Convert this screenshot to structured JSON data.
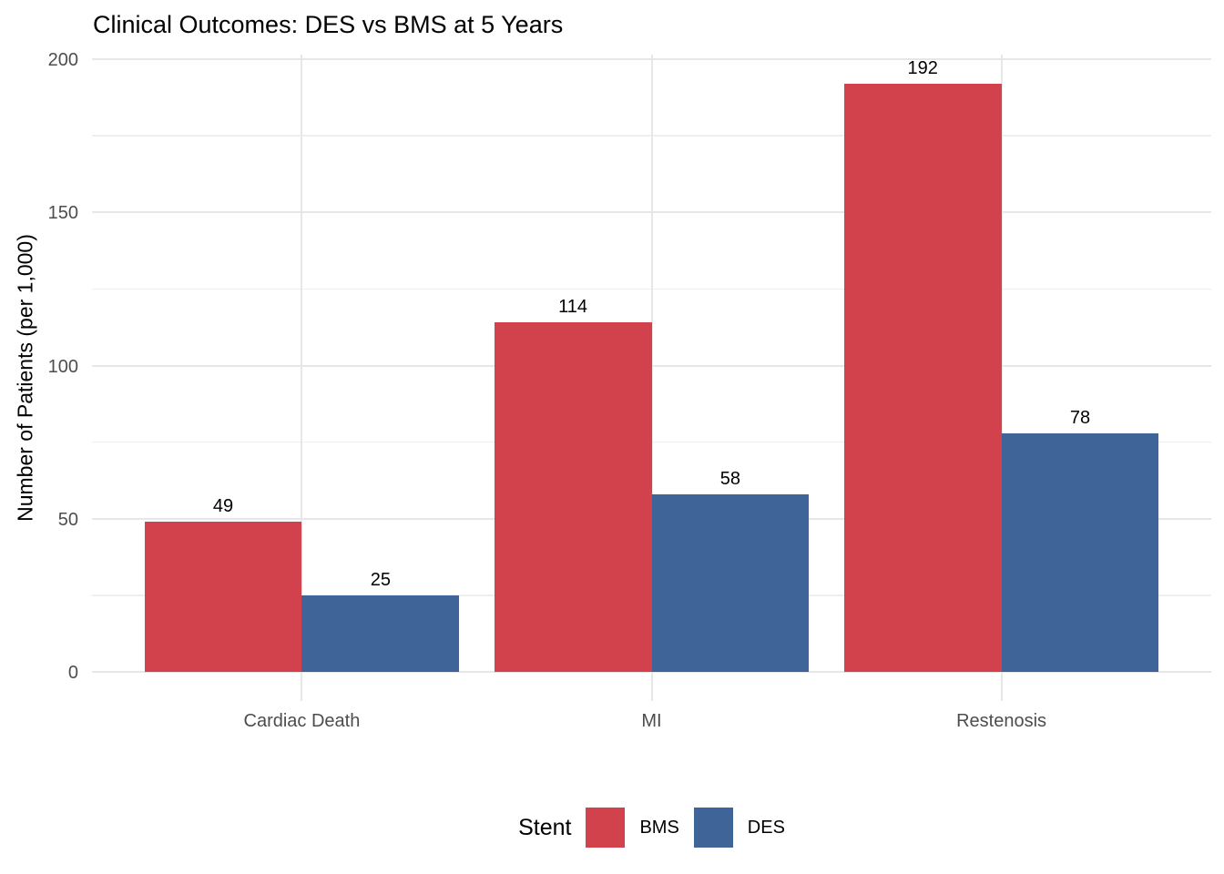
{
  "title": "Clinical Outcomes: DES vs BMS at 5 Years",
  "chart_data": {
    "type": "bar",
    "title": "Clinical Outcomes: DES vs BMS at 5 Years",
    "xlabel": "",
    "ylabel": "Number of Patients (per 1,000)",
    "categories": [
      "Cardiac Death",
      "MI",
      "Restenosis"
    ],
    "series": [
      {
        "name": "BMS",
        "color": "#D2424C",
        "values": [
          49,
          114,
          192
        ]
      },
      {
        "name": "DES",
        "color": "#3F6497",
        "values": [
          25,
          58,
          78
        ]
      }
    ],
    "ylim": [
      0,
      200
    ],
    "yticks": [
      0,
      50,
      100,
      150,
      200
    ],
    "yminor_ticks": [
      25,
      75,
      125,
      175
    ],
    "bar_value_labels": [
      [
        49,
        114,
        192
      ],
      [
        25,
        58,
        78
      ]
    ],
    "legend_title": "Stent",
    "legend_position": "bottom",
    "grid": "horizontal major+minor, vertical at category centers",
    "colors": {
      "background": "#FFFFFF",
      "grid_major": "#E7E7E7",
      "grid_minor": "#EFEFEF",
      "axis_text": "#4D4D4D",
      "title_text": "#000000",
      "bar_label_text": "#000000"
    }
  }
}
